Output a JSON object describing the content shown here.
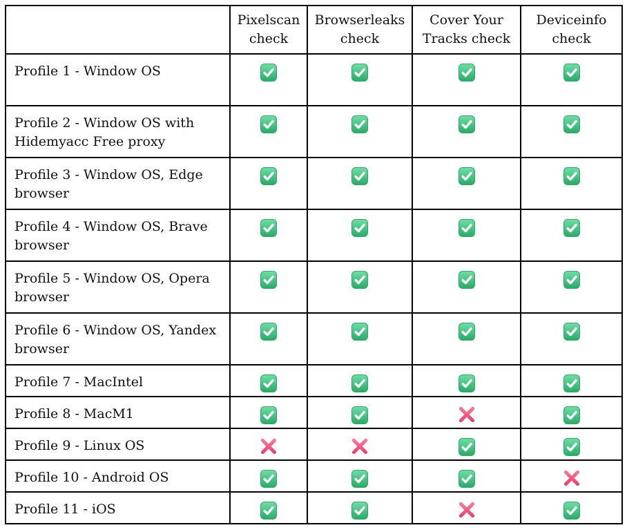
{
  "table": {
    "columns": [
      {
        "id": "profile",
        "label": ""
      },
      {
        "id": "pixelscan",
        "label": "Pixelscan check"
      },
      {
        "id": "browserleaks",
        "label": "Browserleaks check"
      },
      {
        "id": "cover-your-tracks",
        "label": "Cover Your Tracks check"
      },
      {
        "id": "deviceinfo",
        "label": "Deviceinfo check"
      }
    ],
    "rows": [
      {
        "profile": "Profile 1 - Window OS",
        "checks": [
          "pass",
          "pass",
          "pass",
          "pass"
        ]
      },
      {
        "profile": "Profile 2 - Window OS with Hidemyacc Free proxy",
        "checks": [
          "pass",
          "pass",
          "pass",
          "pass"
        ]
      },
      {
        "profile": "Profile 3 - Window OS, Edge browser",
        "checks": [
          "pass",
          "pass",
          "pass",
          "pass"
        ]
      },
      {
        "profile": "Profile 4 - Window OS, Brave browser",
        "checks": [
          "pass",
          "pass",
          "pass",
          "pass"
        ]
      },
      {
        "profile": "Profile 5 - Window OS, Opera browser",
        "checks": [
          "pass",
          "pass",
          "pass",
          "pass"
        ]
      },
      {
        "profile": "Profile 6 - Window OS, Yandex browser",
        "checks": [
          "pass",
          "pass",
          "pass",
          "pass"
        ]
      },
      {
        "profile": "Profile 7 - MacIntel",
        "checks": [
          "pass",
          "pass",
          "pass",
          "pass"
        ]
      },
      {
        "profile": "Profile 8 - MacM1",
        "checks": [
          "pass",
          "pass",
          "fail",
          "pass"
        ]
      },
      {
        "profile": "Profile 9 - Linux OS",
        "checks": [
          "fail",
          "fail",
          "pass",
          "pass"
        ]
      },
      {
        "profile": "Profile 10 - Android OS",
        "checks": [
          "pass",
          "pass",
          "pass",
          "fail"
        ]
      },
      {
        "profile": "Profile 11 - iOS",
        "checks": [
          "pass",
          "pass",
          "fail",
          "pass"
        ]
      }
    ]
  },
  "icons": {
    "pass": {
      "name": "check-icon",
      "glyph": "✅"
    },
    "fail": {
      "name": "cross-icon",
      "glyph": "❌"
    }
  },
  "colors": {
    "background": "#ffffff",
    "text": "#111111",
    "border": "#000000",
    "check_green_light": "#74dca6",
    "check_green": "#44c384",
    "check_green_dark": "#2ea768",
    "cross_pink_light": "#f9779b",
    "cross_pink": "#f2527c",
    "cross_pink_dark": "#ee4168"
  }
}
